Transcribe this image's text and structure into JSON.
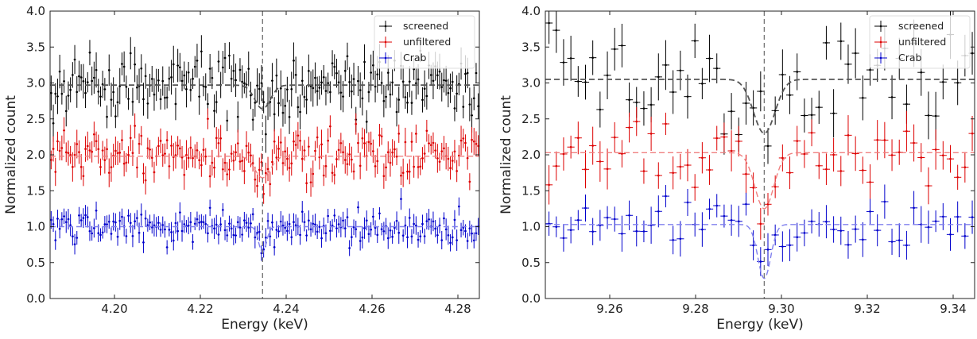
{
  "chart_data": [
    {
      "type": "scatter",
      "title": "",
      "xlabel": "Energy (keV)",
      "ylabel": "Normalized count",
      "xlim": [
        4.185,
        4.285
      ],
      "ylim": [
        0.0,
        4.0
      ],
      "xticks": [
        4.2,
        4.22,
        4.24,
        4.26,
        4.28
      ],
      "xtick_labels": [
        "4.20",
        "4.22",
        "4.24",
        "4.26",
        "4.28"
      ],
      "yticks": [
        0.0,
        0.5,
        1.0,
        1.5,
        2.0,
        2.5,
        3.0,
        3.5,
        4.0
      ],
      "ytick_labels": [
        "0.0",
        "0.5",
        "1.0",
        "1.5",
        "2.0",
        "2.5",
        "3.0",
        "3.5",
        "4.0"
      ],
      "vline": 4.2345,
      "legend": {
        "position": "top-right",
        "entries": [
          "screened",
          "unfiltered",
          "Crab"
        ]
      },
      "bin_width": 0.0005,
      "series": [
        {
          "name": "screened",
          "color": "#000000",
          "model_color": "#555555",
          "continuum": 2.97,
          "line_center": 4.2345,
          "line_depth": 0.33,
          "line_sigma": 0.0018,
          "scatter": 0.22,
          "yerr": 0.2
        },
        {
          "name": "unfiltered",
          "color": "#dd0000",
          "model_color": "#f08080",
          "continuum": 1.98,
          "line_center": 4.2345,
          "line_depth": 0.3,
          "line_sigma": 0.0018,
          "scatter": 0.16,
          "yerr": 0.16
        },
        {
          "name": "Crab",
          "color": "#0000cc",
          "model_color": "#8080ee",
          "continuum": 1.0,
          "line_center": 4.2345,
          "line_depth": 0.36,
          "line_sigma": 0.0009,
          "scatter": 0.11,
          "yerr": 0.12
        }
      ]
    },
    {
      "type": "scatter",
      "title": "",
      "xlabel": "Energy (keV)",
      "ylabel": "Normalized count",
      "xlim": [
        9.245,
        9.345
      ],
      "ylim": [
        0.0,
        4.0
      ],
      "xticks": [
        9.26,
        9.28,
        9.3,
        9.32,
        9.34
      ],
      "xtick_labels": [
        "9.26",
        "9.28",
        "9.30",
        "9.32",
        "9.34"
      ],
      "yticks": [
        0.0,
        0.5,
        1.0,
        1.5,
        2.0,
        2.5,
        3.0,
        3.5,
        4.0
      ],
      "ytick_labels": [
        "0.0",
        "0.5",
        "1.0",
        "1.5",
        "2.0",
        "2.5",
        "3.0",
        "3.5",
        "4.0"
      ],
      "vline": 9.296,
      "legend": {
        "position": "top-right",
        "entries": [
          "screened",
          "unfiltered",
          "Crab"
        ]
      },
      "bin_width": 0.0017,
      "series": [
        {
          "name": "screened",
          "color": "#000000",
          "model_color": "#555555",
          "continuum": 3.05,
          "line_center": 9.296,
          "line_depth": 0.75,
          "line_sigma": 0.0025,
          "scatter": 0.3,
          "yerr": 0.28
        },
        {
          "name": "unfiltered",
          "color": "#dd0000",
          "model_color": "#f08080",
          "continuum": 2.03,
          "line_center": 9.296,
          "line_depth": 0.78,
          "line_sigma": 0.0022,
          "scatter": 0.22,
          "yerr": 0.22
        },
        {
          "name": "Crab",
          "color": "#0000cc",
          "model_color": "#8080ee",
          "continuum": 1.03,
          "line_center": 9.296,
          "line_depth": 0.75,
          "line_sigma": 0.0015,
          "scatter": 0.18,
          "yerr": 0.2
        }
      ]
    }
  ]
}
